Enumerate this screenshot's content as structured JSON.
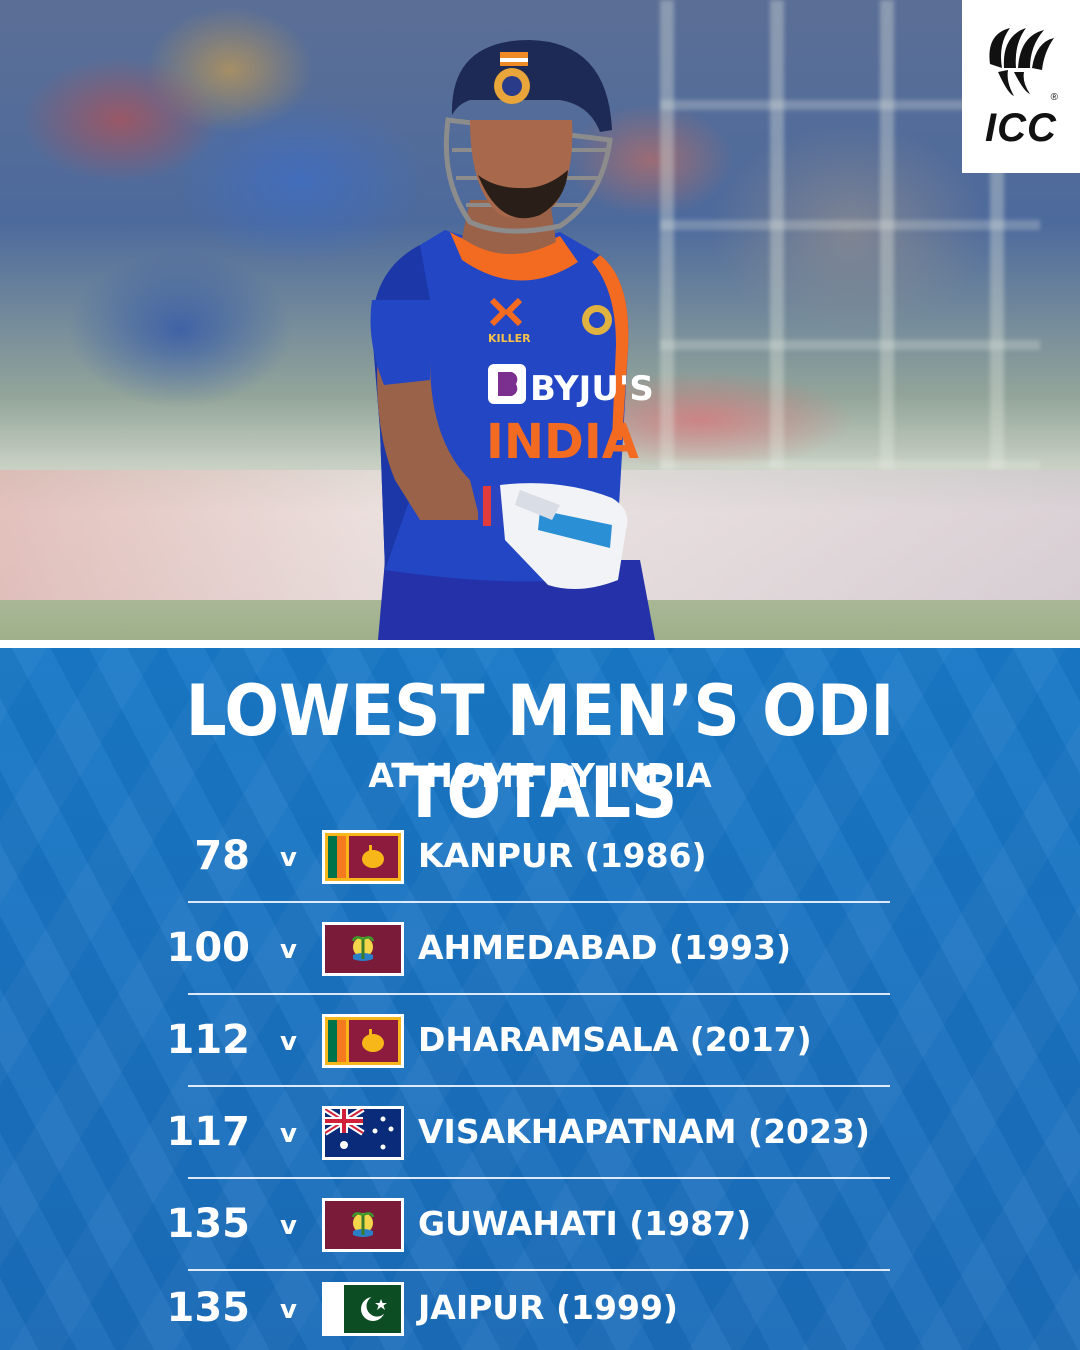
{
  "brand": {
    "logo_text": "ICC",
    "registered_mark": "®",
    "logo_icon": "icc-logo-icon"
  },
  "photo": {
    "jersey_sponsor": "BYJU'S",
    "jersey_team": "INDIA",
    "kit_brand": "KILLER"
  },
  "heading": {
    "title": "LOWEST MEN’S ODI TOTALS",
    "subtitle": "AT HOME BY INDIA"
  },
  "totals": [
    {
      "score": "78",
      "vs": "v",
      "opponent_flag": "sri-lanka-flag",
      "venue": "KANPUR (1986)"
    },
    {
      "score": "100",
      "vs": "v",
      "opponent_flag": "west-indies-flag",
      "venue": "AHMEDABAD (1993)"
    },
    {
      "score": "112",
      "vs": "v",
      "opponent_flag": "sri-lanka-flag",
      "venue": "DHARAMSALA (2017)"
    },
    {
      "score": "117",
      "vs": "v",
      "opponent_flag": "australia-flag",
      "venue": "VISAKHAPATNAM (2023)"
    },
    {
      "score": "135",
      "vs": "v",
      "opponent_flag": "west-indies-flag",
      "venue": "GUWAHATI (1987)"
    },
    {
      "score": "135",
      "vs": "v",
      "opponent_flag": "pakistan-flag",
      "venue": "JAIPUR (1999)"
    }
  ],
  "colors": {
    "panel_blue": "#1a72c0",
    "text": "#ffffff",
    "india_blue": "#1f3fb0",
    "india_orange": "#f26b21"
  }
}
